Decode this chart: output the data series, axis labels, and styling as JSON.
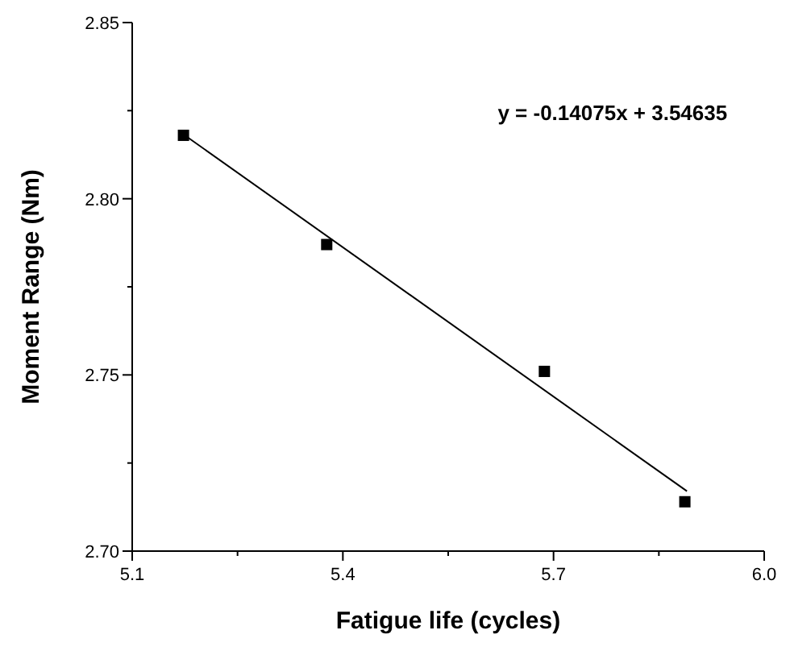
{
  "chart_data": {
    "type": "scatter",
    "xlabel": "Fatigue life (cycles)",
    "ylabel": "Moment  Range (Nm)",
    "xlim": [
      5.1,
      6.0
    ],
    "ylim": [
      2.7,
      2.85
    ],
    "xticks": [
      {
        "value": 5.1,
        "label": "5.1"
      },
      {
        "value": 5.25,
        "label": null
      },
      {
        "value": 5.4,
        "label": "5.4"
      },
      {
        "value": 5.55,
        "label": null
      },
      {
        "value": 5.7,
        "label": "5.7"
      },
      {
        "value": 5.85,
        "label": null
      },
      {
        "value": 6.0,
        "label": "6.0"
      }
    ],
    "yticks": [
      {
        "value": 2.7,
        "label": "2.70"
      },
      {
        "value": 2.725,
        "label": null
      },
      {
        "value": 2.75,
        "label": "2.75"
      },
      {
        "value": 2.775,
        "label": null
      },
      {
        "value": 2.8,
        "label": "2.80"
      },
      {
        "value": 2.825,
        "label": null
      },
      {
        "value": 2.85,
        "label": "2.85"
      }
    ],
    "grid": false,
    "series": [
      {
        "marker": "square",
        "color": "#000000",
        "x": [
          5.173,
          5.377,
          5.687,
          5.887
        ],
        "values": [
          2.818,
          2.787,
          2.751,
          2.714
        ]
      },
      {
        "type": "line",
        "color": "#000000",
        "x": [
          5.175,
          5.89
        ],
        "values": [
          2.818,
          2.717
        ]
      }
    ],
    "annotations": [
      "y = -0.14075x + 3.54635"
    ]
  }
}
